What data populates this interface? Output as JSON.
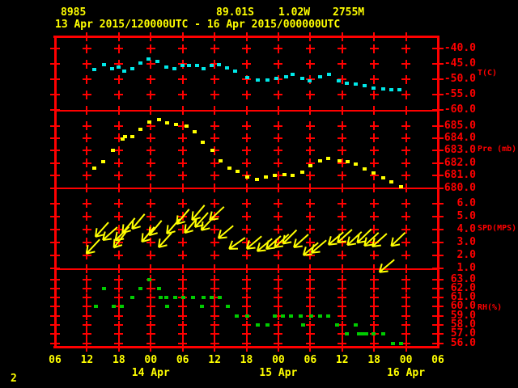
{
  "header": {
    "station_id": "8985",
    "latitude": "89.01S",
    "longitude": "1.02W",
    "elevation": "2755M",
    "time_range": "13 Apr 2015/120000UTC - 16 Apr 2015/000000UTC"
  },
  "footer": {
    "page_number": "2"
  },
  "colors": {
    "background": "#000000",
    "grid": "#ff0000",
    "axis_text": "#ff0000",
    "header_text": "#ffff00",
    "temperature": "#00e8e8",
    "pressure": "#ffff00",
    "wind": "#ffff00",
    "humidity": "#00cc00"
  },
  "chart_data": {
    "type": "scatter",
    "title": "",
    "x_axis": {
      "start": "13 Apr 2015 06UTC",
      "hours_span": 72,
      "tick_hours": [
        0,
        6,
        12,
        18,
        24,
        30,
        36,
        42,
        48,
        54,
        60,
        66,
        72
      ],
      "tick_labels": [
        "06",
        "12",
        "18",
        "00",
        "06",
        "12",
        "18",
        "00",
        "06",
        "12",
        "18",
        "00",
        "06"
      ],
      "date_labels": [
        {
          "label": "14 Apr",
          "hour": 18
        },
        {
          "label": "15 Apr",
          "hour": 42
        },
        {
          "label": "16 Apr",
          "hour": 66
        }
      ],
      "grid": true
    },
    "panels": [
      {
        "id": "temperature",
        "unit_label": "T(C)",
        "tick_values": [
          -40,
          -45,
          -50,
          -55,
          -60
        ],
        "tick_labels": [
          "-40.0",
          "-45.0",
          "-50.0",
          "-55.0",
          "-60.0"
        ],
        "series": [
          [
            7.4,
            -46.9
          ],
          [
            9.2,
            -45.2
          ],
          [
            10.7,
            -46.5
          ],
          [
            12.0,
            -46.1
          ],
          [
            13.0,
            -47.4
          ],
          [
            14.5,
            -46.7
          ],
          [
            16.0,
            -44.7
          ],
          [
            17.6,
            -43.4
          ],
          [
            19.3,
            -44.3
          ],
          [
            20.9,
            -46.1
          ],
          [
            22.4,
            -46.7
          ],
          [
            23.9,
            -45.6
          ],
          [
            25.2,
            -45.4
          ],
          [
            26.7,
            -45.4
          ],
          [
            28.0,
            -46.5
          ],
          [
            29.5,
            -45.6
          ],
          [
            30.8,
            -45.2
          ],
          [
            32.3,
            -46.3
          ],
          [
            33.8,
            -47.4
          ],
          [
            36.1,
            -49.6
          ],
          [
            38.1,
            -50.2
          ],
          [
            39.9,
            -50.2
          ],
          [
            41.7,
            -49.8
          ],
          [
            43.4,
            -49.1
          ],
          [
            44.7,
            -48.5
          ],
          [
            46.5,
            -49.8
          ],
          [
            47.8,
            -50.4
          ],
          [
            49.8,
            -49.1
          ],
          [
            51.6,
            -48.5
          ],
          [
            53.3,
            -50.4
          ],
          [
            54.9,
            -51.3
          ],
          [
            56.6,
            -51.6
          ],
          [
            58.2,
            -52.0
          ],
          [
            59.9,
            -52.8
          ],
          [
            61.7,
            -53.1
          ],
          [
            63.2,
            -53.3
          ],
          [
            64.7,
            -53.5
          ]
        ]
      },
      {
        "id": "pressure",
        "unit_label": "Pre (mb)",
        "tick_values": [
          685,
          684,
          683,
          682,
          681,
          680
        ],
        "tick_labels": [
          "685.0",
          "684.0",
          "683.0",
          "682.0",
          "681.0",
          "680.0"
        ],
        "series": [
          [
            7.4,
            681.6
          ],
          [
            9.1,
            682.1
          ],
          [
            10.9,
            683.0
          ],
          [
            12.7,
            683.9
          ],
          [
            13.2,
            684.1
          ],
          [
            14.5,
            684.1
          ],
          [
            16.0,
            684.7
          ],
          [
            17.8,
            685.3
          ],
          [
            19.5,
            685.5
          ],
          [
            21.1,
            685.2
          ],
          [
            22.8,
            685.1
          ],
          [
            24.7,
            685.0
          ],
          [
            26.3,
            684.5
          ],
          [
            27.8,
            683.7
          ],
          [
            29.6,
            683.0
          ],
          [
            31.1,
            682.2
          ],
          [
            32.8,
            681.6
          ],
          [
            34.4,
            681.3
          ],
          [
            36.1,
            680.9
          ],
          [
            38.0,
            680.65
          ],
          [
            39.6,
            680.9
          ],
          [
            41.4,
            681.0
          ],
          [
            43.2,
            681.1
          ],
          [
            44.7,
            681.0
          ],
          [
            46.5,
            681.25
          ],
          [
            48.1,
            681.8
          ],
          [
            49.8,
            682.2
          ],
          [
            51.3,
            682.4
          ],
          [
            53.5,
            682.15
          ],
          [
            55.1,
            682.1
          ],
          [
            56.6,
            681.9
          ],
          [
            58.2,
            681.5
          ],
          [
            59.9,
            681.2
          ],
          [
            61.7,
            680.8
          ],
          [
            63.2,
            680.5
          ],
          [
            65.0,
            680.1
          ]
        ]
      },
      {
        "id": "wind_speed",
        "unit_label": "SPD(MPS)",
        "tick_values": [
          6,
          5,
          4,
          3,
          2,
          1
        ],
        "tick_labels": [
          "6.0",
          "5.0",
          "4.0",
          "3.0",
          "2.0",
          "1.0"
        ],
        "arrows": [
          [
            7.1,
            2.7,
            133
          ],
          [
            8.8,
            4.0,
            132
          ],
          [
            10.3,
            3.7,
            138
          ],
          [
            12.2,
            3.2,
            128
          ],
          [
            12.6,
            3.7,
            135
          ],
          [
            13.8,
            4.3,
            130
          ],
          [
            15.7,
            4.6,
            130
          ],
          [
            17.5,
            3.6,
            130
          ],
          [
            18.8,
            4.1,
            130
          ],
          [
            20.7,
            3.2,
            132
          ],
          [
            22.3,
            4.25,
            131
          ],
          [
            24.0,
            5.0,
            130
          ],
          [
            25.5,
            4.3,
            130
          ],
          [
            26.9,
            5.3,
            130
          ],
          [
            27.5,
            4.75,
            132
          ],
          [
            28.7,
            4.5,
            133
          ],
          [
            30.4,
            5.25,
            137
          ],
          [
            32.1,
            3.8,
            140
          ],
          [
            34.3,
            2.9,
            145
          ],
          [
            37.4,
            3.0,
            140
          ],
          [
            39.5,
            2.8,
            140
          ],
          [
            41.1,
            3.0,
            138
          ],
          [
            42.6,
            3.1,
            137
          ],
          [
            44.2,
            3.4,
            135
          ],
          [
            46.3,
            3.1,
            138
          ],
          [
            48.1,
            2.5,
            140
          ],
          [
            49.6,
            2.65,
            140
          ],
          [
            52.8,
            3.3,
            140
          ],
          [
            54.5,
            3.5,
            138
          ],
          [
            56.3,
            3.3,
            137
          ],
          [
            58.2,
            3.5,
            136
          ],
          [
            59.5,
            3.25,
            137
          ],
          [
            61.1,
            3.2,
            138
          ],
          [
            62.4,
            1.2,
            140
          ],
          [
            64.5,
            3.25,
            136
          ]
        ]
      },
      {
        "id": "relative_humidity",
        "unit_label": "RH(%)",
        "tick_values": [
          63,
          62,
          61,
          60,
          59,
          58,
          57,
          56
        ],
        "tick_labels": [
          "63.0",
          "62.0",
          "61.0",
          "60.0",
          "59.0",
          "58.0",
          "57.0",
          "56.0"
        ],
        "series": [
          [
            7.7,
            60
          ],
          [
            9.2,
            62
          ],
          [
            11.0,
            60
          ],
          [
            12.5,
            60
          ],
          [
            14.5,
            61
          ],
          [
            16.0,
            62
          ],
          [
            17.8,
            63
          ],
          [
            19.5,
            62
          ],
          [
            19.8,
            61
          ],
          [
            20.9,
            61
          ],
          [
            21.1,
            60
          ],
          [
            22.6,
            61
          ],
          [
            24.2,
            61
          ],
          [
            25.9,
            61
          ],
          [
            27.7,
            60
          ],
          [
            28.0,
            61
          ],
          [
            29.5,
            61
          ],
          [
            31.0,
            61
          ],
          [
            32.5,
            60
          ],
          [
            34.1,
            59
          ],
          [
            36.1,
            59
          ],
          [
            38.1,
            58
          ],
          [
            39.9,
            58
          ],
          [
            41.4,
            59
          ],
          [
            42.9,
            59
          ],
          [
            44.4,
            59
          ],
          [
            46.2,
            59
          ],
          [
            46.7,
            58
          ],
          [
            48.2,
            59
          ],
          [
            49.8,
            59
          ],
          [
            51.3,
            59
          ],
          [
            53.1,
            58
          ],
          [
            54.9,
            57
          ],
          [
            56.6,
            58
          ],
          [
            57.1,
            57
          ],
          [
            57.9,
            57
          ],
          [
            58.6,
            57
          ],
          [
            59.9,
            57
          ],
          [
            61.7,
            57
          ],
          [
            63.5,
            56
          ],
          [
            65.0,
            56
          ]
        ]
      }
    ]
  }
}
